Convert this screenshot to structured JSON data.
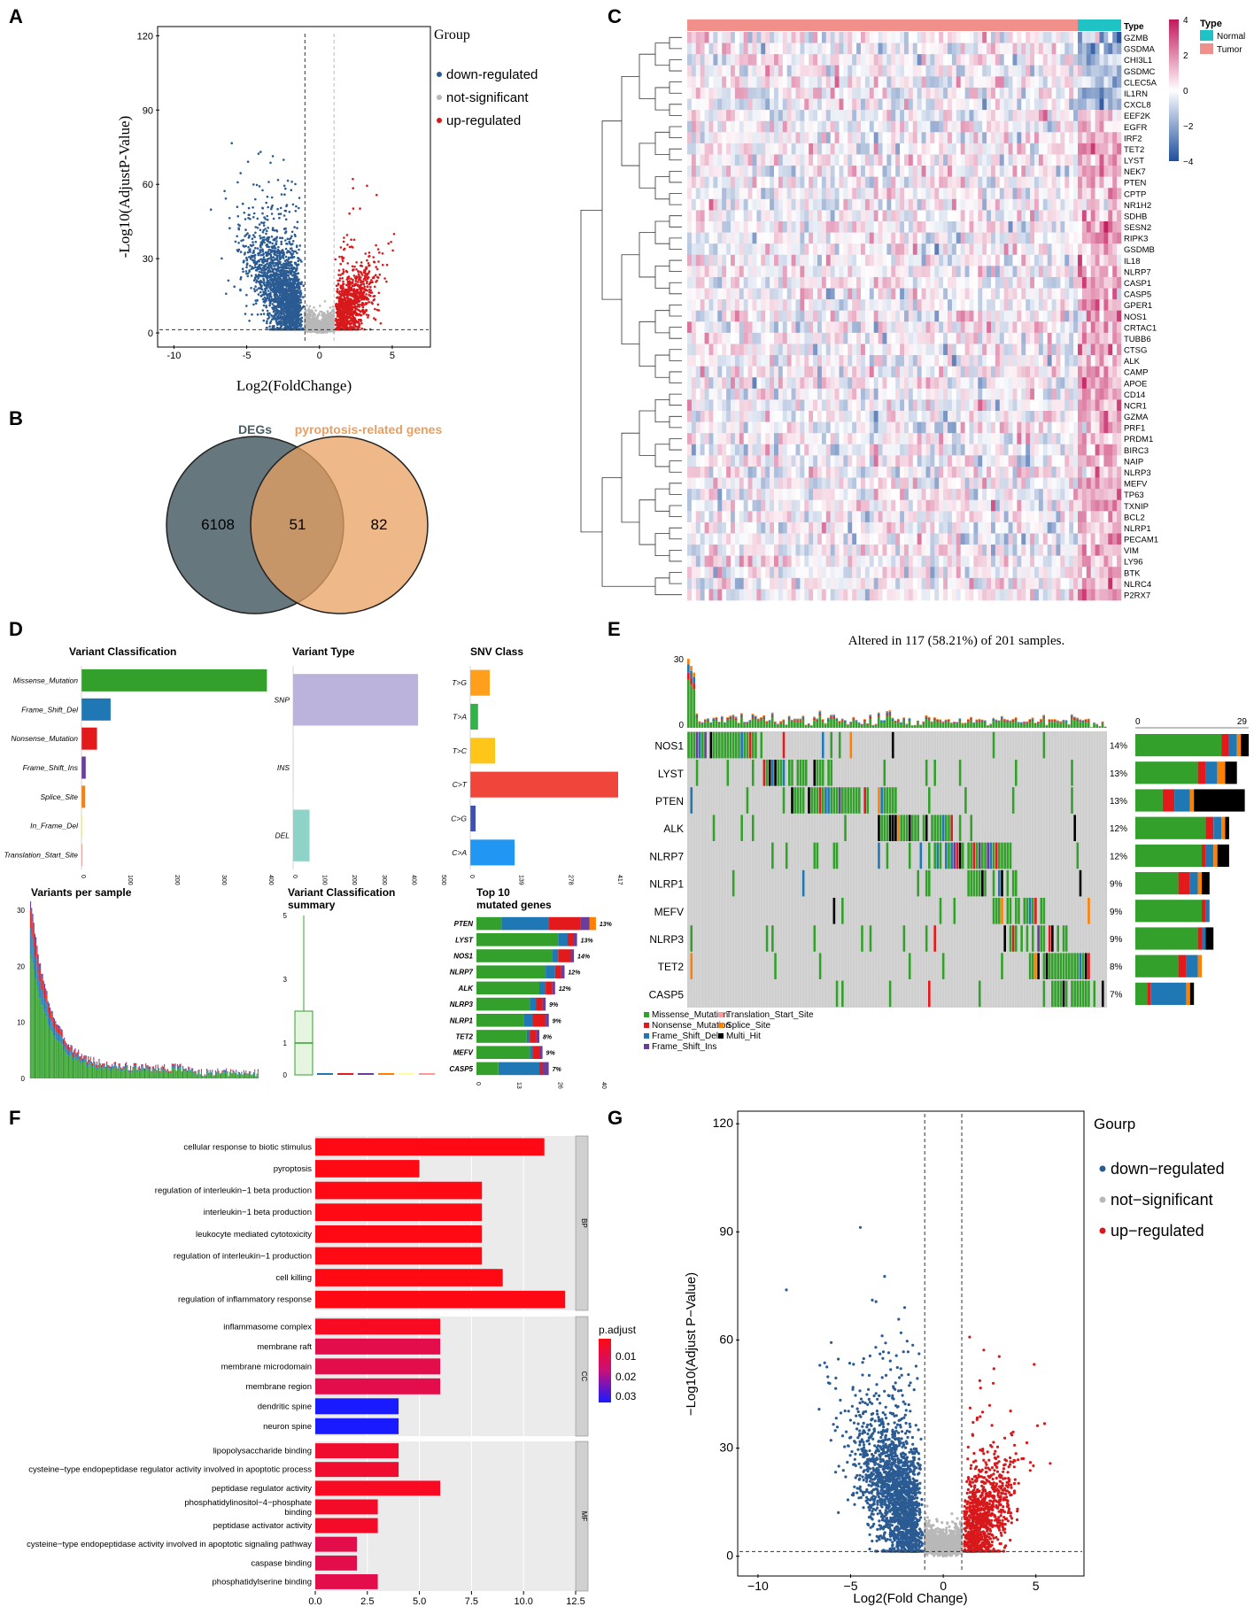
{
  "panel_labels": {
    "a": "A",
    "b": "B",
    "c": "C",
    "d": "D",
    "e": "E",
    "f": "F",
    "g": "G"
  },
  "colors": {
    "down": "#2b5b93",
    "ns": "#b8b8b8",
    "up": "#d7191c",
    "deg": "#4b5f67",
    "pyro": "#e8a062",
    "hm_high": "#c2185b",
    "hm_mid": "#ffffff",
    "hm_low": "#1f4e9e",
    "normal": "#1fc3c6",
    "tumor": "#f1908a",
    "missense": "#33a02c",
    "nonsense": "#e31a1c",
    "fs_del": "#1f78b4",
    "fs_ins": "#6a3d9a",
    "tss": "#fb9a99",
    "splice": "#ff7f00",
    "multi": "#000000"
  },
  "chart_data": [
    {
      "id": "A",
      "type": "scatter",
      "xlabel": "Log2(FoldChange)",
      "ylabel": "-Log10(AdjustP-Value)",
      "xlim": [
        -11,
        7.5
      ],
      "ylim": [
        -5,
        123
      ],
      "xticks": [
        "-10",
        "-5",
        "0",
        "5"
      ],
      "yticks": [
        "0",
        "30",
        "60",
        "90",
        "120"
      ],
      "thresholds": {
        "fc": 1,
        "y": 1.3
      },
      "legend_title": "Group",
      "legend": [
        "down-regulated",
        "not-significant",
        "up-regulated"
      ]
    },
    {
      "id": "B",
      "type": "venn",
      "sets": [
        {
          "name": "DEGs",
          "only": "6108"
        },
        {
          "name": "pyroptosis-related genes",
          "only": "82"
        }
      ],
      "intersection": "51"
    },
    {
      "id": "C",
      "type": "heatmap",
      "annotation_label": "Type",
      "groups": [
        {
          "name": "Tumor",
          "n": 90
        },
        {
          "name": "Normal",
          "n": 10
        }
      ],
      "legend_title": "Type",
      "legend_items": [
        "Normal",
        "Tumor"
      ],
      "scale_ticks": [
        "4",
        "2",
        "0",
        "−2",
        "−4"
      ],
      "genes": [
        "GZMB",
        "GSDMA",
        "CHI3L1",
        "GSDMC",
        "CLEC5A",
        "IL1RN",
        "CXCL8",
        "EEF2K",
        "EGFR",
        "IRF2",
        "TET2",
        "LYST",
        "NEK7",
        "PTEN",
        "CPTP",
        "NR1H2",
        "SDHB",
        "SESN2",
        "RIPK3",
        "GSDMB",
        "IL18",
        "NLRP7",
        "CASP1",
        "CASP5",
        "GPER1",
        "NOS1",
        "CRTAC1",
        "TUBB6",
        "CTSG",
        "ALK",
        "CAMP",
        "APOE",
        "CD14",
        "NCR1",
        "GZMA",
        "PRF1",
        "PRDM1",
        "BIRC3",
        "NAIP",
        "NLRP3",
        "MEFV",
        "TP63",
        "TXNIP",
        "BCL2",
        "NLRP1",
        "PECAM1",
        "VIM",
        "LY96",
        "BTK",
        "NLRC4",
        "P2RX7"
      ]
    },
    {
      "id": "D1",
      "type": "bar",
      "title": "Variant Classification",
      "categories": [
        "Missense_Mutation",
        "Frame_Shift_Del",
        "Nonsense_Mutation",
        "Frame_Shift_Ins",
        "Splice_Site",
        "In_Frame_Del",
        "Translation_Start_Site"
      ],
      "values": [
        395,
        62,
        33,
        9,
        8,
        1,
        1
      ],
      "ticks": [
        "0",
        "100",
        "200",
        "300",
        "400"
      ],
      "xlim": [
        0,
        400
      ]
    },
    {
      "id": "D2",
      "type": "bar",
      "title": "Variant Type",
      "categories": [
        "SNP",
        "INS",
        "DEL"
      ],
      "values": [
        420,
        3,
        55
      ],
      "ticks": [
        "0",
        "100",
        "200",
        "300",
        "400",
        "500"
      ],
      "xlim": [
        0,
        500
      ]
    },
    {
      "id": "D3",
      "type": "bar",
      "title": "SNV Class",
      "categories": [
        "T>G",
        "T>A",
        "T>C",
        "C>T",
        "C>G",
        "C>A"
      ],
      "values": [
        55,
        22,
        70,
        417,
        15,
        125
      ],
      "ticks": [
        "0",
        "139",
        "278",
        "417"
      ],
      "xlim": [
        0,
        417
      ]
    },
    {
      "id": "D4",
      "type": "bar",
      "title": "Variants per sample",
      "yticks": [
        "0",
        "10",
        "20",
        "30"
      ],
      "ylim": [
        0,
        30
      ]
    },
    {
      "id": "D5",
      "type": "box",
      "title_lines": [
        "Variant Classification",
        "summary"
      ],
      "yticks": [
        "0",
        "1",
        "3",
        "5"
      ],
      "ylim": [
        0,
        5
      ],
      "box": {
        "min": 0,
        "q1": 0,
        "median": 1,
        "q3": 2,
        "max": 5
      }
    },
    {
      "id": "D6",
      "type": "bar",
      "title_lines": [
        "Top 10",
        "mutated genes"
      ],
      "genes": [
        "PTEN",
        "LYST",
        "NOS1",
        "NLRP7",
        "ALK",
        "NLRP3",
        "NLRP1",
        "TET2",
        "MEFV",
        "CASP5"
      ],
      "pcts": [
        "13%",
        "13%",
        "14%",
        "12%",
        "12%",
        "9%",
        "9%",
        "8%",
        "9%",
        "7%"
      ],
      "segments": [
        [
          8,
          15,
          10,
          3,
          2
        ],
        [
          26,
          3,
          2,
          1,
          0
        ],
        [
          24,
          2,
          4,
          1,
          0
        ],
        [
          22,
          3,
          2,
          1,
          0
        ],
        [
          20,
          2,
          2,
          1,
          0
        ],
        [
          17,
          2,
          2,
          1,
          0
        ],
        [
          15,
          3,
          4,
          1,
          0
        ],
        [
          16,
          1,
          2,
          1,
          0
        ],
        [
          17,
          1,
          2,
          1,
          0
        ],
        [
          7,
          13,
          1,
          2,
          0
        ]
      ],
      "ticks": [
        "0",
        "13",
        "26",
        "40"
      ],
      "xlim": [
        0,
        40
      ]
    },
    {
      "id": "E",
      "type": "oncoplot",
      "title": "Altered in 117 (58.21%) of 201 samples.",
      "genes": [
        "NOS1",
        "LYST",
        "PTEN",
        "ALK",
        "NLRP7",
        "NLRP1",
        "MEFV",
        "NLRP3",
        "TET2",
        "CASP5"
      ],
      "pcts": [
        "14%",
        "13%",
        "13%",
        "12%",
        "12%",
        "9%",
        "9%",
        "9%",
        "8%",
        "7%"
      ],
      "top_ticks": [
        "30",
        "0"
      ],
      "right_ticks": [
        "0",
        "29"
      ],
      "right_segments": [
        [
          22,
          2,
          2,
          1,
          2
        ],
        [
          16,
          2,
          3,
          2,
          3
        ],
        [
          7,
          3,
          4,
          1,
          13
        ],
        [
          18,
          2,
          2,
          1,
          1
        ],
        [
          17,
          1,
          2,
          1,
          3
        ],
        [
          11,
          3,
          2,
          1,
          2
        ],
        [
          17,
          1,
          1,
          0,
          0
        ],
        [
          16,
          1,
          1,
          0,
          2
        ],
        [
          11,
          2,
          3,
          1,
          0
        ],
        [
          3,
          1,
          9,
          1,
          1
        ]
      ],
      "legend": [
        "Missense_Mutation",
        "Nonsense_Mutation",
        "Frame_Shift_Del",
        "Frame_Shift_Ins",
        "Translation_Start_Site",
        "Splice_Site",
        "Multi_Hit"
      ]
    },
    {
      "id": "F",
      "type": "bar",
      "categories": [
        "cellular response to biotic stimulus",
        "pyroptosis",
        "regulation of interleukin−1 beta production",
        "interleukin−1 beta production",
        "leukocyte mediated cytotoxicity",
        "regulation of interleukin−1 production",
        "cell killing",
        "regulation of inflammatory response",
        "inflammasome complex",
        "membrane raft",
        "membrane microdomain",
        "membrane region",
        "dendritic spine",
        "neuron spine",
        "lipopolysaccharide binding",
        "cysteine−type endopeptidase regulator activity involved in apoptotic process",
        "peptidase regulator activity",
        "phosphatidylinositol−4−phosphate binding",
        "peptidase activator activity",
        "cysteine−type endopeptidase activity involved in apoptotic signaling pathway",
        "caspase binding",
        "phosphatidylserine binding"
      ],
      "values": [
        11,
        5,
        8,
        8,
        8,
        8,
        9,
        12,
        6,
        6,
        6,
        6,
        4,
        4,
        4,
        4,
        6,
        3,
        3,
        2,
        2,
        3
      ],
      "padj": [
        0.004,
        0.004,
        0.004,
        0.004,
        0.004,
        0.004,
        0.004,
        0.004,
        0.006,
        0.012,
        0.012,
        0.012,
        0.034,
        0.034,
        0.008,
        0.008,
        0.006,
        0.007,
        0.007,
        0.012,
        0.012,
        0.012
      ],
      "groups": [
        {
          "name": "BP",
          "count": 8
        },
        {
          "name": "CC",
          "count": 6
        },
        {
          "name": "MF",
          "count": 8
        }
      ],
      "ticks": [
        "0.0",
        "2.5",
        "5.0",
        "7.5",
        "10.0",
        "12.5"
      ],
      "xlim": [
        0,
        12.5
      ],
      "legend_title": "p.adjust",
      "legend_ticks": [
        "0.01",
        "0.02",
        "0.03"
      ]
    },
    {
      "id": "G",
      "type": "scatter",
      "xlabel": "Log2(Fold Change)",
      "ylabel": "−Log10(Adjust P−Value)",
      "xlim": [
        -11,
        7.5
      ],
      "ylim": [
        -5,
        123
      ],
      "xticks": [
        "−10",
        "−5",
        "0",
        "5"
      ],
      "yticks": [
        "0",
        "30",
        "60",
        "90",
        "120"
      ],
      "thresholds": {
        "fc": 1,
        "y": 1.3
      },
      "legend_title": "Gourp",
      "legend": [
        "down−regulated",
        "not−significant",
        "up−regulated"
      ]
    }
  ]
}
